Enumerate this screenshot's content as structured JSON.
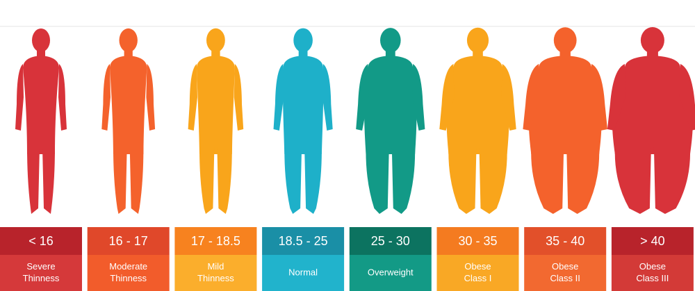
{
  "categories": [
    {
      "range": "< 16",
      "label": [
        "Severe",
        "Thinness"
      ],
      "figure_color": "#d8333a",
      "top_color": "#b8232b",
      "bottom_color": "#d5393a"
    },
    {
      "range": "16 - 17",
      "label": [
        "Moderate",
        "Thinness"
      ],
      "figure_color": "#f4622c",
      "top_color": "#e0482a",
      "bottom_color": "#f25c2b"
    },
    {
      "range": "17 - 18.5",
      "label": [
        "Mild",
        "Thinness"
      ],
      "figure_color": "#f9a51b",
      "top_color": "#f7821f",
      "bottom_color": "#fbae2c"
    },
    {
      "range": "18.5 - 25",
      "label": [
        "Normal"
      ],
      "figure_color": "#1eb0c9",
      "top_color": "#1a8fa6",
      "bottom_color": "#21b3cc"
    },
    {
      "range": "25 - 30",
      "label": [
        "Overweight"
      ],
      "figure_color": "#129a87",
      "top_color": "#0c7360",
      "bottom_color": "#139a86"
    },
    {
      "range": "30 - 35",
      "label": [
        "Obese",
        "Class I"
      ],
      "figure_color": "#f9a51b",
      "top_color": "#f47b20",
      "bottom_color": "#f9a825"
    },
    {
      "range": "35 - 40",
      "label": [
        "Obese",
        "Class II"
      ],
      "figure_color": "#f4622c",
      "top_color": "#e2502a",
      "bottom_color": "#f26930"
    },
    {
      "range": "> 40",
      "label": [
        "Obese",
        "Class III"
      ],
      "figure_color": "#d8333a",
      "top_color": "#b8232b",
      "bottom_color": "#d33a37"
    }
  ]
}
